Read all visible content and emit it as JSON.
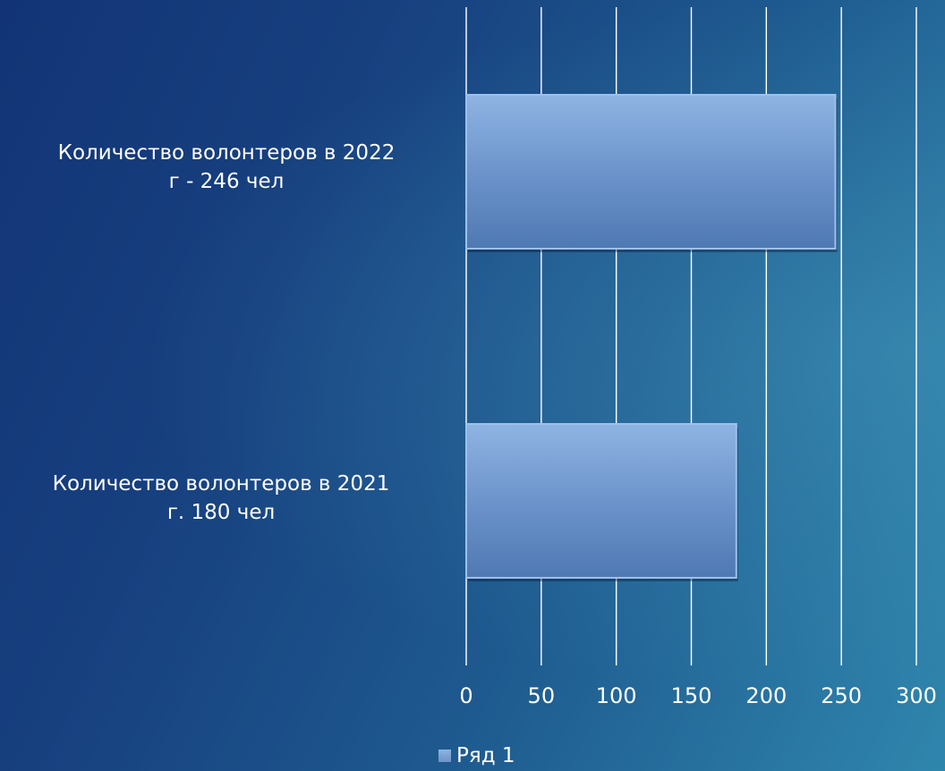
{
  "chart_data": {
    "type": "bar",
    "orientation": "horizontal",
    "categories": [
      [
        "Количество волонтеров в 2022",
        "г - 246 чел"
      ],
      [
        "Количество волонтеров в 2021",
        "г. 180 чел"
      ]
    ],
    "series": [
      {
        "name": "Ряд 1",
        "values": [
          246,
          180
        ]
      }
    ],
    "xlim": [
      0,
      300
    ],
    "xticks": [
      "0",
      "50",
      "100",
      "150",
      "200",
      "250",
      "300"
    ],
    "grid": true,
    "legend": "bottom",
    "colors": {
      "bar_top": "#8eb4e3",
      "bar_bottom": "#4f79b3",
      "bar_edge": "#9fc0ea",
      "gridline": "#ffffff"
    }
  }
}
